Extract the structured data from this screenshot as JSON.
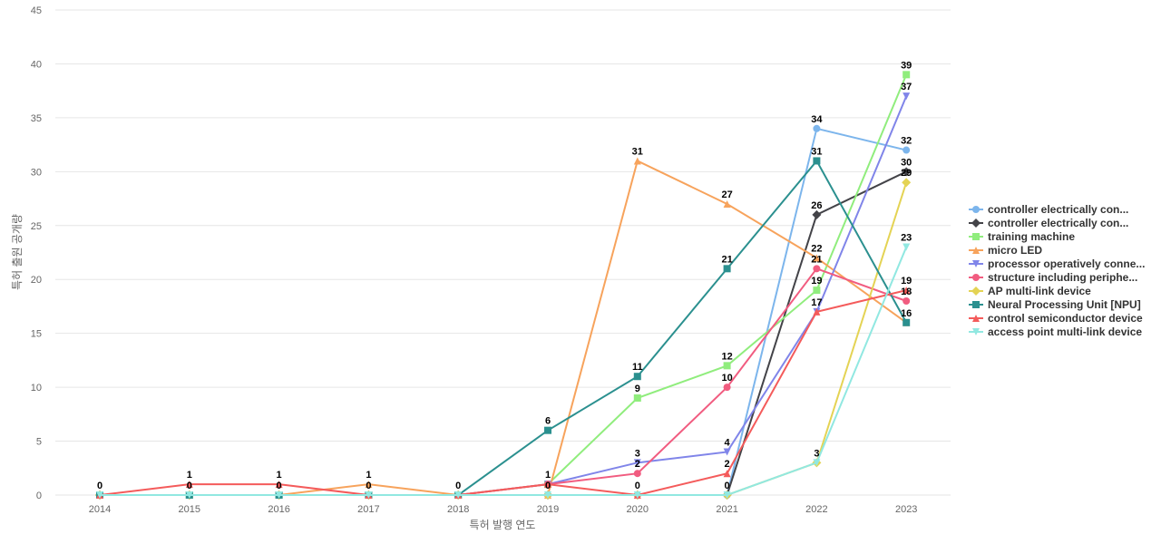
{
  "chart_data": {
    "type": "line",
    "title": "",
    "xlabel": "특허 발행 연도",
    "ylabel": "특허 출원 공개량",
    "ylim": [
      0,
      45
    ],
    "yticks": [
      0,
      5,
      10,
      15,
      20,
      25,
      30,
      35,
      40,
      45
    ],
    "categories": [
      "2014",
      "2015",
      "2016",
      "2017",
      "2018",
      "2019",
      "2020",
      "2021",
      "2022",
      "2023"
    ],
    "legend_position": "right",
    "series": [
      {
        "name": "controller electrically con...",
        "color": "#7cb5ec",
        "marker": "circle",
        "values": [
          0,
          0,
          0,
          0,
          0,
          0,
          0,
          0,
          34,
          32
        ]
      },
      {
        "name": "controller electrically con...",
        "color": "#434348",
        "marker": "diamond",
        "values": [
          0,
          0,
          0,
          0,
          0,
          0,
          0,
          0,
          26,
          30
        ]
      },
      {
        "name": "training machine",
        "color": "#90ed7d",
        "marker": "square",
        "values": [
          0,
          0,
          0,
          0,
          0,
          1,
          9,
          12,
          19,
          39
        ]
      },
      {
        "name": "micro LED",
        "color": "#f7a35c",
        "marker": "triangle",
        "values": [
          0,
          0,
          0,
          1,
          0,
          0,
          31,
          27,
          22,
          16
        ]
      },
      {
        "name": "processor operatively conne...",
        "color": "#8085e9",
        "marker": "triangle-down",
        "values": [
          0,
          0,
          0,
          0,
          0,
          1,
          3,
          4,
          17,
          37
        ]
      },
      {
        "name": "structure including periphe...",
        "color": "#f15c80",
        "marker": "circle",
        "values": [
          0,
          0,
          0,
          0,
          0,
          1,
          2,
          10,
          21,
          18
        ]
      },
      {
        "name": "AP multi-link device",
        "color": "#e4d354",
        "marker": "diamond",
        "values": [
          0,
          0,
          0,
          0,
          0,
          0,
          0,
          0,
          3,
          29
        ]
      },
      {
        "name": "Neural Processing Unit [NPU]",
        "color": "#2b908f",
        "marker": "square",
        "values": [
          0,
          0,
          0,
          0,
          0,
          6,
          11,
          21,
          31,
          16
        ]
      },
      {
        "name": "control semiconductor device",
        "color": "#f45b5b",
        "marker": "triangle",
        "values": [
          0,
          1,
          1,
          0,
          0,
          1,
          0,
          2,
          17,
          19
        ]
      },
      {
        "name": "access point multi-link device",
        "color": "#91e8e1",
        "marker": "triangle-down",
        "values": [
          0,
          0,
          0,
          0,
          0,
          0,
          0,
          0,
          3,
          23
        ]
      }
    ],
    "data_labels": [
      {
        "cat": 0,
        "value": 0
      },
      {
        "cat": 1,
        "value": 1
      },
      {
        "cat": 1,
        "value": 0
      },
      {
        "cat": 2,
        "value": 1
      },
      {
        "cat": 2,
        "value": 0
      },
      {
        "cat": 3,
        "value": 1
      },
      {
        "cat": 3,
        "value": 0
      },
      {
        "cat": 4,
        "value": 0
      },
      {
        "cat": 5,
        "value": 6
      },
      {
        "cat": 5,
        "value": 1
      },
      {
        "cat": 5,
        "value": 0
      },
      {
        "cat": 6,
        "value": 31
      },
      {
        "cat": 6,
        "value": 11
      },
      {
        "cat": 6,
        "value": 9
      },
      {
        "cat": 6,
        "value": 3
      },
      {
        "cat": 6,
        "value": 2
      },
      {
        "cat": 6,
        "value": 0
      },
      {
        "cat": 7,
        "value": 27
      },
      {
        "cat": 7,
        "value": 21
      },
      {
        "cat": 7,
        "value": 12
      },
      {
        "cat": 7,
        "value": 10
      },
      {
        "cat": 7,
        "value": 4
      },
      {
        "cat": 7,
        "value": 2
      },
      {
        "cat": 7,
        "value": 0
      },
      {
        "cat": 8,
        "value": 34
      },
      {
        "cat": 8,
        "value": 31
      },
      {
        "cat": 8,
        "value": 26
      },
      {
        "cat": 8,
        "value": 22
      },
      {
        "cat": 8,
        "value": 21
      },
      {
        "cat": 8,
        "value": 19
      },
      {
        "cat": 8,
        "value": 17
      },
      {
        "cat": 8,
        "value": 3
      },
      {
        "cat": 9,
        "value": 39
      },
      {
        "cat": 9,
        "value": 37
      },
      {
        "cat": 9,
        "value": 32
      },
      {
        "cat": 9,
        "value": 30
      },
      {
        "cat": 9,
        "value": 29
      },
      {
        "cat": 9,
        "value": 23
      },
      {
        "cat": 9,
        "value": 19
      },
      {
        "cat": 9,
        "value": 18
      },
      {
        "cat": 9,
        "value": 16
      }
    ]
  }
}
